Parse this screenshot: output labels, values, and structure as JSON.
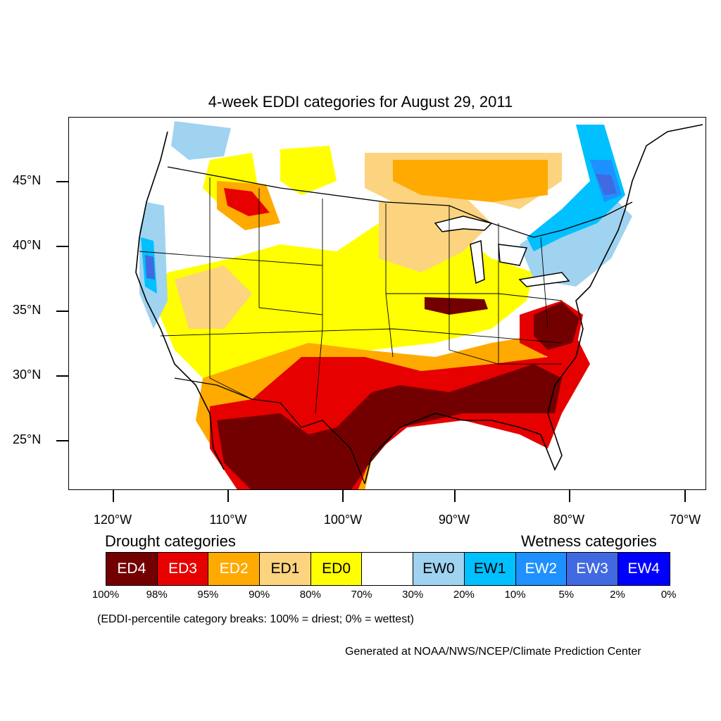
{
  "title": "4-week EDDI categories for August 29, 2011",
  "y_axis": {
    "ticks": [
      "45°N",
      "40°N",
      "35°N",
      "30°N",
      "25°N"
    ]
  },
  "x_axis": {
    "ticks": [
      "120°W",
      "110°W",
      "100°W",
      "90°W",
      "80°W",
      "70°W"
    ]
  },
  "legend": {
    "drought_heading": "Drought categories",
    "wetness_heading": "Wetness categories",
    "categories": [
      {
        "label": "ED4",
        "color": "#730000"
      },
      {
        "label": "ED3",
        "color": "#e60000"
      },
      {
        "label": "ED2",
        "color": "#ffaa00"
      },
      {
        "label": "ED1",
        "color": "#fcd37f"
      },
      {
        "label": "ED0",
        "color": "#ffff00"
      },
      {
        "label": "",
        "color": "#ffffff"
      },
      {
        "label": "EW0",
        "color": "#9fd3f0"
      },
      {
        "label": "EW1",
        "color": "#00c0ff"
      },
      {
        "label": "EW2",
        "color": "#1e90ff"
      },
      {
        "label": "EW3",
        "color": "#4169e1"
      },
      {
        "label": "EW4",
        "color": "#0000ff"
      }
    ],
    "breaks": [
      "100%",
      "98%",
      "95%",
      "90%",
      "80%",
      "70%",
      "30%",
      "20%",
      "10%",
      "5%",
      "2%",
      "0%"
    ]
  },
  "note": "(EDDI-percentile category breaks: 100% = driest; 0% = wettest)",
  "credit": "Generated at NOAA/NWS/NCEP/Climate Prediction Center"
}
